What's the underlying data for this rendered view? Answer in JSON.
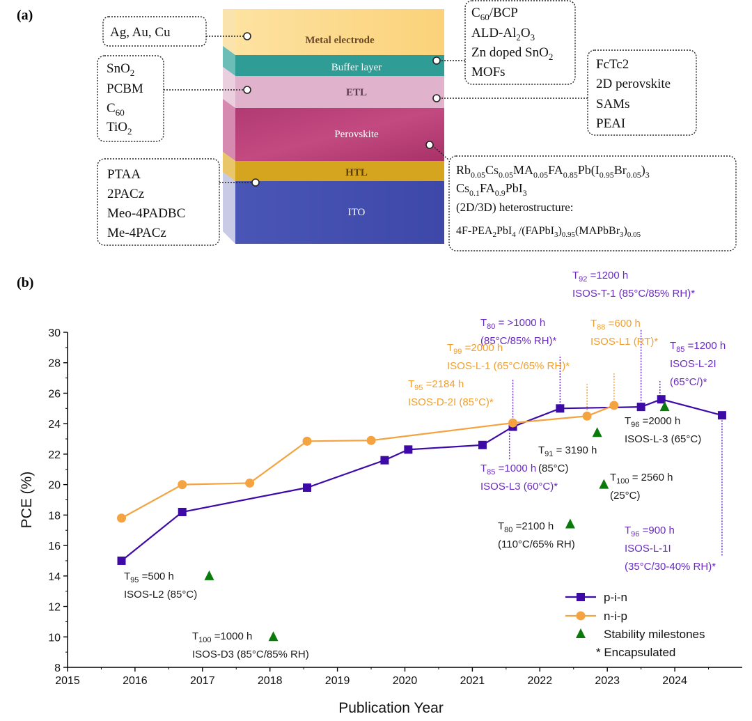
{
  "panel_a": {
    "label": "(a)",
    "layers": [
      {
        "name": "Metal electrode"
      },
      {
        "name": "Buffer layer"
      },
      {
        "name": "ETL"
      },
      {
        "name": "Perovskite"
      },
      {
        "name": "HTL"
      },
      {
        "name": "ITO"
      }
    ],
    "callouts": {
      "metal": [
        "Ag, Au, Cu"
      ],
      "buffer": [
        "C60/BCP",
        "ALD-Al2O3",
        "Zn doped SnO2",
        "MOFs"
      ],
      "etl": [
        "SnO2",
        "PCBM",
        "C60",
        "TiO2"
      ],
      "passivation": [
        "FcTc2",
        "2D perovskite",
        "SAMs",
        "PEAI"
      ],
      "htl": [
        "PTAA",
        "2PACz",
        "Meo-4PADBC",
        "Me-4PACz"
      ],
      "perovskite": [
        "Rb0.05Cs0.05MA0.05FA0.85Pb(I0.95Br0.05)3",
        "Cs0.1FA0.9PbI3",
        "(2D/3D) heterostructure:",
        "4F-PEA2PbI4 /(FAPbI3)0.95(MAPbBr3)0.05"
      ]
    }
  },
  "panel_b": {
    "label": "(b)"
  },
  "chart_data": {
    "type": "line",
    "xlabel": "Publication Year",
    "ylabel": "PCE (%)",
    "xlim": [
      2015,
      2025
    ],
    "ylim": [
      8,
      30
    ],
    "xticks": [
      2015,
      2016,
      2017,
      2018,
      2019,
      2020,
      2021,
      2022,
      2023,
      2024
    ],
    "yticks": [
      8,
      10,
      12,
      14,
      16,
      18,
      20,
      22,
      24,
      26,
      28,
      30
    ],
    "grid": false,
    "legend_position": "bottom-right",
    "colors": {
      "pin": "#3d0aa8",
      "nip": "#f4a340",
      "milestone": "#0a7a0a",
      "annotation_pin": "#6a2cc0",
      "annotation_nip": "#f0a030",
      "annotation_black": "#1a1a1a"
    },
    "series": [
      {
        "name": "p-i-n",
        "marker": "square",
        "color": "#3d0aa8",
        "x": [
          2015.8,
          2016.7,
          2018.55,
          2019.7,
          2020.05,
          2021.15,
          2021.6,
          2022.3,
          2023.5,
          2023.8,
          2024.7
        ],
        "y": [
          15.0,
          18.2,
          19.8,
          21.6,
          22.3,
          22.6,
          23.8,
          25.0,
          25.1,
          25.6,
          24.55
        ]
      },
      {
        "name": "n-i-p",
        "marker": "circle",
        "color": "#f4a340",
        "x": [
          2015.8,
          2016.7,
          2017.7,
          2018.55,
          2019.5,
          2021.6,
          2022.7,
          2023.1
        ],
        "y": [
          17.8,
          20.0,
          20.1,
          22.85,
          22.9,
          24.05,
          24.5,
          25.2
        ]
      },
      {
        "name": "Stability milestones",
        "marker": "triangle",
        "color": "#0a7a0a",
        "x": [
          2017.1,
          2018.05,
          2022.45,
          2022.85,
          2022.95,
          2023.85
        ],
        "y": [
          14.0,
          10.0,
          17.4,
          23.4,
          20.0,
          25.1
        ]
      }
    ],
    "legend": [
      "p-i-n",
      "n-i-p",
      "Stability milestones",
      "* Encapsulated"
    ],
    "annotations": [
      {
        "color": "black",
        "lines": [
          "T95 =500 h",
          "ISOS-L2 (85°C)"
        ]
      },
      {
        "color": "black",
        "lines": [
          "T100 =1000 h",
          "ISOS-D3 (85°C/85% RH)"
        ]
      },
      {
        "color": "black",
        "lines": [
          "T80 =2100 h",
          "(110°C/65% RH)"
        ]
      },
      {
        "color": "black",
        "lines": [
          "T91 = 3190 h",
          "(85°C)"
        ]
      },
      {
        "color": "black",
        "lines": [
          "T100 = 2560 h",
          "(25°C)"
        ]
      },
      {
        "color": "black",
        "lines": [
          "T96 =2000 h",
          "ISOS-L-3 (65°C)"
        ]
      },
      {
        "color": "purple",
        "lines": [
          "T85 =1000 h",
          "ISOS-L3  (60°C)*"
        ]
      },
      {
        "color": "purple",
        "lines": [
          "T80 = >1000 h",
          "(85°C/85% RH)*"
        ]
      },
      {
        "color": "purple",
        "lines": [
          "T92 =1200 h",
          "ISOS-T-1  (85°C/85% RH)*"
        ]
      },
      {
        "color": "purple",
        "lines": [
          "T85 =1200 h",
          "ISOS-L-2I",
          "(65°C/)*"
        ]
      },
      {
        "color": "purple",
        "lines": [
          "T96 =900 h",
          "ISOS-L-1I",
          "(35°C/30-40% RH)*"
        ]
      },
      {
        "color": "orange",
        "lines": [
          "T95 =2184 h",
          "ISOS-D-2I (85°C)*"
        ]
      },
      {
        "color": "orange",
        "lines": [
          "T99 =2000 h",
          "ISOS-L-1 (65°C/65% RH)*"
        ]
      },
      {
        "color": "orange",
        "lines": [
          "T88 =600 h",
          "ISOS-L1 (RT)*"
        ]
      }
    ]
  }
}
